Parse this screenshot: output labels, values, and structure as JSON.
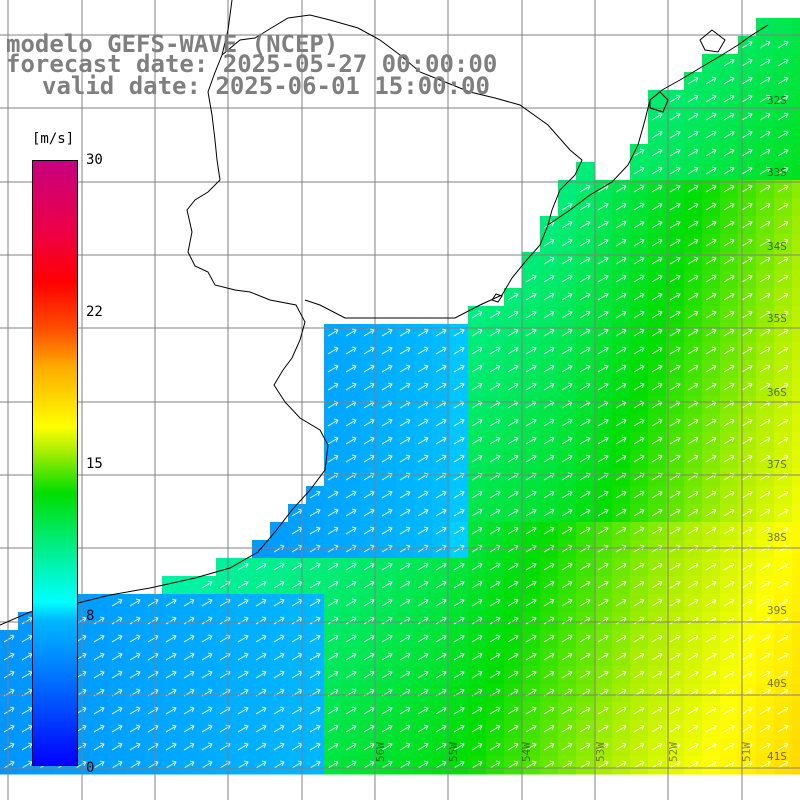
{
  "title": {
    "line1": "modelo GEFS-WAVE (NCEP)",
    "line2": "forecast date: 2025-05-27 00:00:00",
    "line3": "valid date: 2025-06-01 15:00:00"
  },
  "colorbar": {
    "unit": "[m/s]",
    "ticks": [
      "30",
      "22",
      "15",
      "8",
      "0"
    ],
    "tick_values": [
      30,
      22,
      15,
      8,
      0
    ],
    "range": [
      0,
      30
    ],
    "colors": [
      "#0000ff",
      "#00ffff",
      "#00dd00",
      "#ffff00",
      "#ff0000",
      "#c80080"
    ]
  },
  "map": {
    "lat_labels": [
      "32S",
      "33S",
      "34S",
      "35S",
      "36S",
      "37S",
      "38S",
      "39S",
      "40S",
      "41S"
    ],
    "lon_labels": [
      "56W",
      "55W",
      "54W",
      "53W",
      "52W",
      "51W"
    ],
    "land_color": "#ffffff",
    "grid_color": "#808080",
    "coast_color": "#000000",
    "arrow_color": "#ffffff",
    "arrow_direction": "northeast"
  }
}
